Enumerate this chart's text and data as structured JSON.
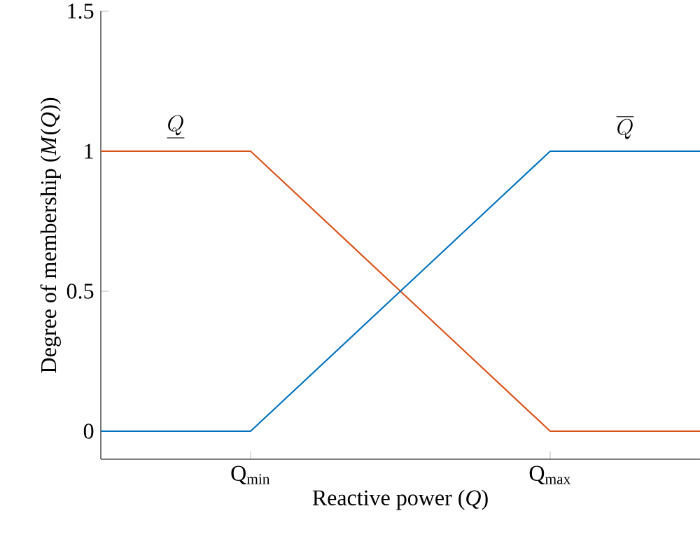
{
  "chart_data": {
    "type": "line",
    "xlabel": "Reactive power (*Q*)",
    "ylabel": "Degree of membership (*M*(*Q*))",
    "categories": [
      null,
      "Q$_{min}$",
      null,
      "Q$_{max}$",
      null
    ],
    "series": [
      {
        "name": "\\underline{Q}",
        "color": "#d95319",
        "values": [
          1,
          1,
          0.5,
          0,
          0
        ]
      },
      {
        "name": "\\overline{Q}",
        "color": "#0072bd",
        "values": [
          0,
          0,
          0.5,
          1,
          1
        ]
      }
    ],
    "ylim": [
      -0.1,
      1.5
    ],
    "yticks": [
      0,
      0.5,
      1,
      1.5
    ],
    "grid": false,
    "marker": "none",
    "line_style": "solid"
  }
}
